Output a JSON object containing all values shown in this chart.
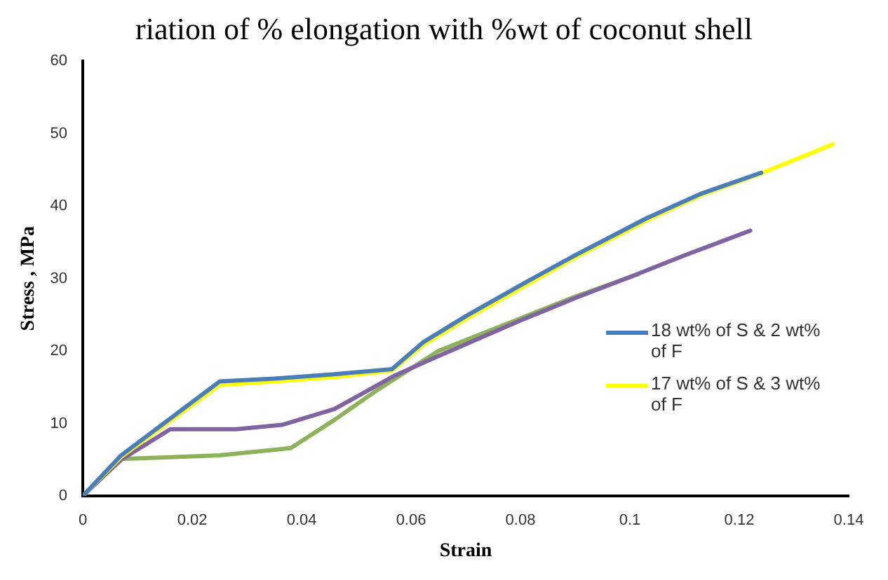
{
  "chart_data": {
    "type": "line",
    "title": "riation of % elongation with %wt of coconut shell",
    "xlabel": "Strain",
    "ylabel": "Stress , MPa",
    "xlim": [
      0,
      0.14
    ],
    "xticks": [
      0,
      0.02,
      0.04,
      0.06,
      0.08,
      0.1,
      0.12,
      0.14
    ],
    "ylim": [
      0,
      60
    ],
    "yticks": [
      0,
      10,
      20,
      30,
      40,
      50,
      60
    ],
    "grid": false,
    "legend": "right",
    "marker": "none",
    "line_style": "solid",
    "series": [
      {
        "name": "18 wt% of S & 2 wt% of F",
        "color": "#4a7ebb",
        "x": [
          0,
          0.007,
          0.025,
          0.035,
          0.046,
          0.0565,
          0.0622,
          0.07,
          0.0815,
          0.09,
          0.103,
          0.113,
          0.124
        ],
        "values": [
          0,
          5.6,
          15.8,
          16.2,
          16.8,
          17.5,
          21.2,
          24.8,
          29.7,
          33.2,
          38.3,
          41.7,
          44.6
        ]
      },
      {
        "name": "17 wt% of S & 3 wt% of F",
        "color": "#ffff00",
        "x": [
          0,
          0.007,
          0.025,
          0.035,
          0.046,
          0.0565,
          0.0622,
          0.07,
          0.0815,
          0.09,
          0.103,
          0.113,
          0.124,
          0.137
        ],
        "values": [
          0,
          5.4,
          15.3,
          15.8,
          16.4,
          17.3,
          20.8,
          24.4,
          29.3,
          32.9,
          38.0,
          41.5,
          44.5,
          48.5
        ]
      },
      {
        "color": "#8064a2",
        "x": [
          0,
          0.007,
          0.016,
          0.028,
          0.0364,
          0.046,
          0.057,
          0.065,
          0.08,
          0.09,
          0.1,
          0.11,
          0.122
        ],
        "values": [
          0,
          5,
          9.2,
          9.2,
          9.8,
          12,
          16.6,
          19.3,
          24.2,
          27.3,
          30.2,
          33.2,
          36.6
        ]
      },
      {
        "color": "#8cb35a",
        "x": [
          0,
          0.0068,
          0.025,
          0.038,
          0.046,
          0.054,
          0.065,
          0.08,
          0.09,
          0.1015
        ],
        "values": [
          0,
          5.1,
          5.6,
          6.6,
          10.5,
          14.7,
          20.0,
          24.5,
          27.5,
          30.6
        ]
      }
    ]
  }
}
